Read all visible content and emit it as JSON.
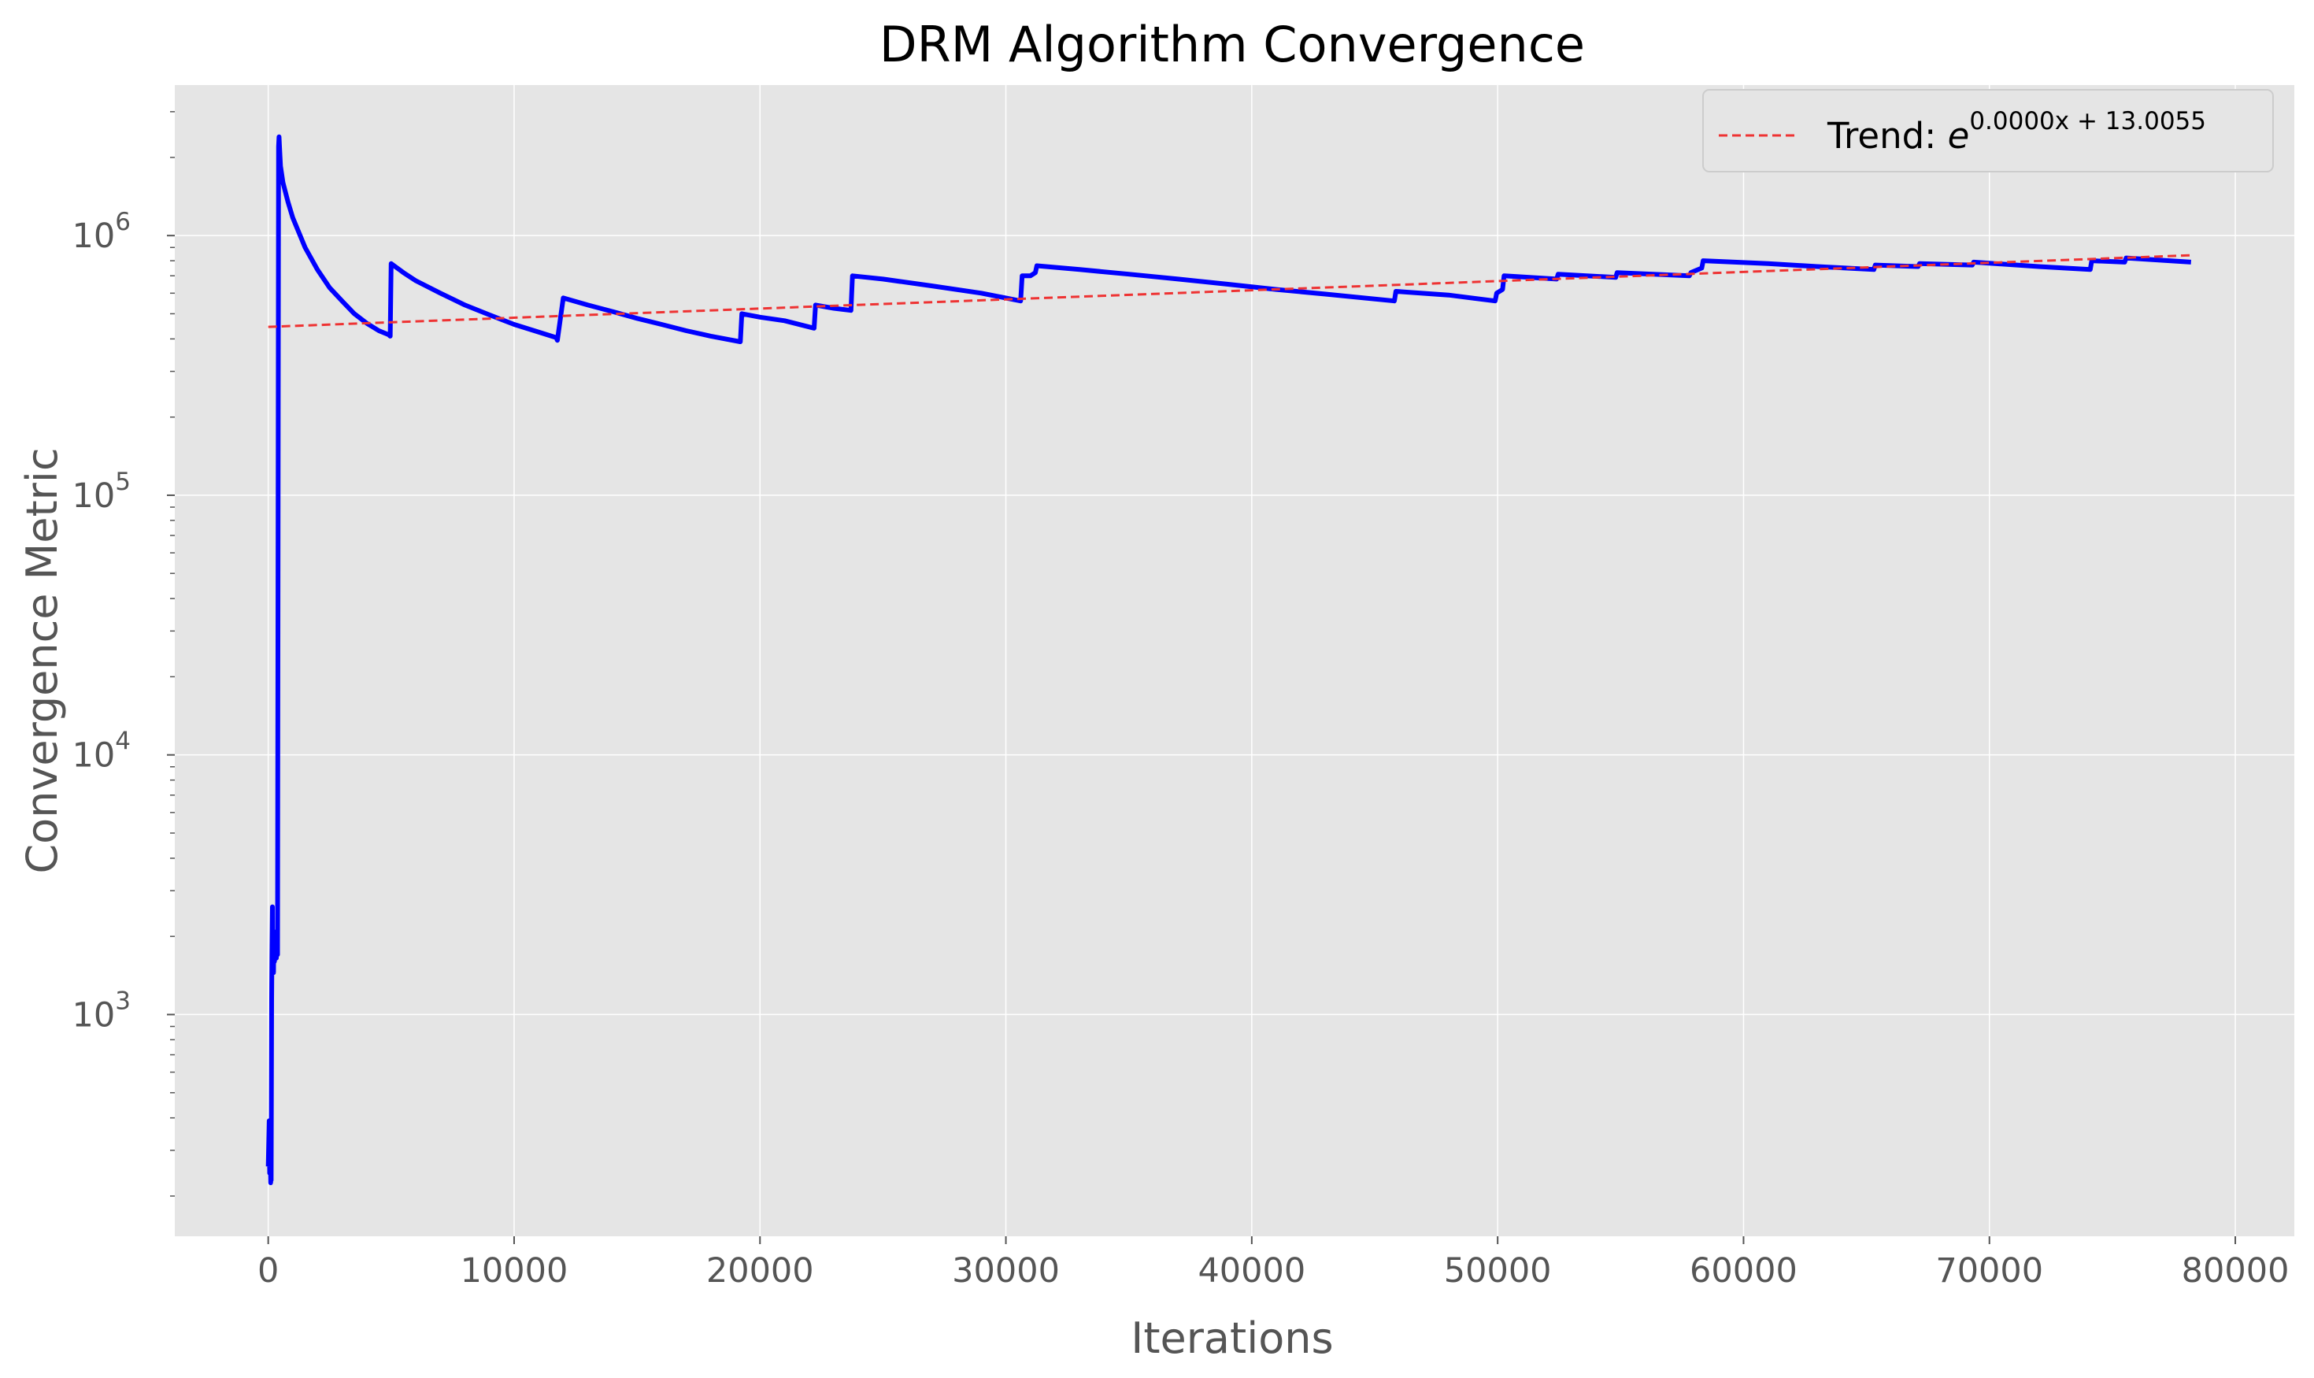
{
  "chart_data": {
    "type": "line",
    "title": "DRM Algorithm Convergence",
    "xlabel": "Iterations",
    "ylabel": "Convergence Metric",
    "xlim": [
      -3800,
      82400
    ],
    "ylim": [
      140,
      3800000
    ],
    "yscale": "log",
    "grid": true,
    "background": "#e5e5e5",
    "grid_color": "#ffffff",
    "x_ticks": [
      0,
      10000,
      20000,
      30000,
      40000,
      50000,
      60000,
      70000,
      80000
    ],
    "x_tick_labels": [
      "0",
      "10000",
      "20000",
      "30000",
      "40000",
      "50000",
      "60000",
      "70000",
      "80000"
    ],
    "y_ticks": [
      1000,
      10000,
      100000,
      1000000
    ],
    "y_tick_bases": [
      "10",
      "10",
      "10",
      "10"
    ],
    "y_tick_exponents": [
      "3",
      "4",
      "5",
      "6"
    ],
    "legend": {
      "position": "upper right",
      "label_prefix": "Trend: ",
      "label_base": "e",
      "label_exponent": "0.0000x + 13.0055"
    },
    "series": [
      {
        "name": "",
        "color": "#0000ff",
        "style": "solid",
        "x": [
          0,
          40,
          60,
          80,
          100,
          110,
          120,
          140,
          150,
          170,
          180,
          200,
          215,
          225,
          250,
          300,
          310,
          330,
          350,
          370,
          380,
          420,
          440,
          460,
          480,
          500,
          600,
          800,
          1000,
          1500,
          2000,
          2500,
          3000,
          3500,
          4000,
          4500,
          4900,
          4960,
          5000,
          5500,
          6000,
          7000,
          8000,
          9000,
          10000,
          11000,
          11700,
          11760,
          12000,
          13000,
          14000,
          15000,
          16000,
          17000,
          18000,
          19200,
          19260,
          20000,
          21000,
          22200,
          22260,
          23000,
          23700,
          23760,
          25000,
          27000,
          29000,
          30600,
          30660,
          31000,
          31200,
          31260,
          33000,
          35000,
          37000,
          39000,
          41000,
          43000,
          45800,
          45860,
          48000,
          49900,
          49960,
          50200,
          50260,
          52400,
          52460,
          54800,
          54860,
          57800,
          57860,
          58300,
          58360,
          61000,
          63000,
          65300,
          65360,
          67100,
          67160,
          69300,
          69360,
          72000,
          74100,
          74160,
          75500,
          75560,
          78200
        ],
        "y": [
          260,
          390,
          245,
          300,
          225,
          250,
          230,
          1150,
          1700,
          2600,
          1500,
          2100,
          1450,
          1900,
          1600,
          1700,
          2000,
          1650,
          1900,
          1700,
          1700,
          2200000,
          2400000,
          2200000,
          2000000,
          1850000,
          1600000,
          1350000,
          1170000,
          900000,
          740000,
          630000,
          560000,
          500000,
          460000,
          430000,
          415000,
          410000,
          780000,
          720000,
          670000,
          600000,
          540000,
          495000,
          455000,
          425000,
          405000,
          395000,
          575000,
          540000,
          510000,
          480000,
          455000,
          430000,
          410000,
          390000,
          500000,
          485000,
          470000,
          440000,
          540000,
          525000,
          515000,
          700000,
          680000,
          640000,
          600000,
          560000,
          700000,
          700000,
          720000,
          765000,
          740000,
          710000,
          680000,
          650000,
          620000,
          595000,
          560000,
          610000,
          590000,
          560000,
          600000,
          620000,
          700000,
          680000,
          710000,
          690000,
          720000,
          700000,
          720000,
          750000,
          800000,
          780000,
          760000,
          740000,
          770000,
          760000,
          780000,
          770000,
          790000,
          760000,
          740000,
          800000,
          790000,
          820000,
          790000
        ]
      },
      {
        "name": "Trend: e^{0.0000x + 13.0055}",
        "color": "#ee3333",
        "style": "dashed",
        "x": [
          0,
          78200
        ],
        "y": [
          445000,
          840000
        ]
      }
    ]
  }
}
